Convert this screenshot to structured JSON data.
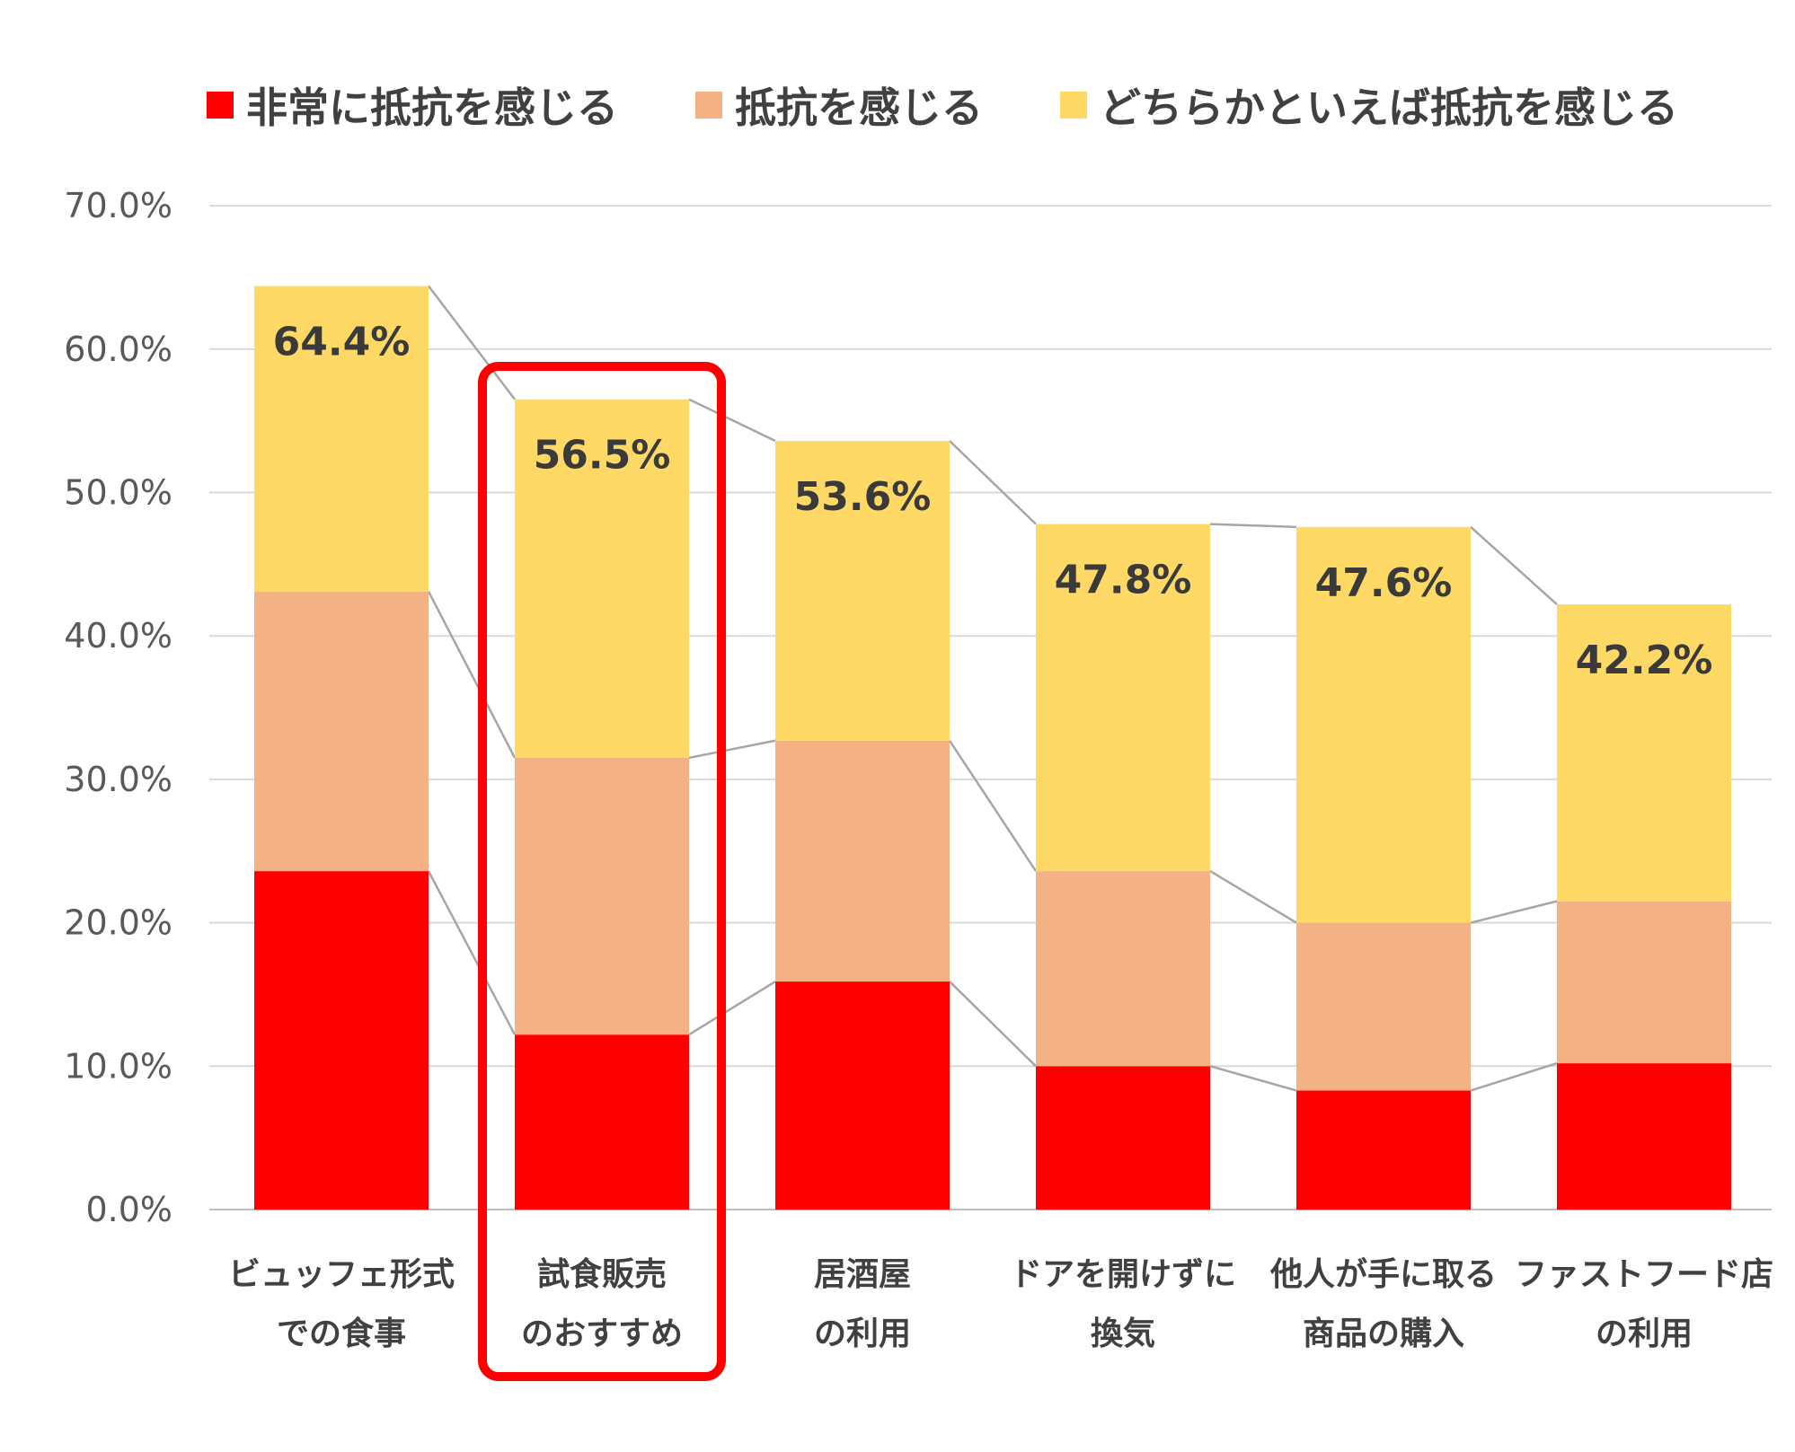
{
  "chart_data": {
    "type": "bar",
    "stacked": true,
    "categories": [
      [
        "ビュッフェ形式",
        "での食事"
      ],
      [
        "試食販売",
        "のおすすめ"
      ],
      [
        "居酒屋",
        "の利用"
      ],
      [
        "ドアを開けずに",
        "換気"
      ],
      [
        "他人が手に取る",
        "商品の購入"
      ],
      [
        "ファストフード店",
        "の利用"
      ]
    ],
    "series": [
      {
        "name": "非常に抵抗を感じる",
        "color": "#FF0000",
        "values": [
          23.6,
          12.2,
          15.9,
          10.0,
          8.3,
          10.2
        ]
      },
      {
        "name": "抵抗を感じる",
        "color": "#F4B183",
        "values": [
          19.5,
          19.3,
          16.8,
          13.6,
          11.7,
          11.3
        ]
      },
      {
        "name": "どちらかといえば抵抗を感じる",
        "color": "#FFD966",
        "values": [
          21.3,
          25.0,
          20.9,
          24.2,
          27.6,
          20.7
        ]
      }
    ],
    "totals": [
      "64.4%",
      "56.5%",
      "53.6%",
      "47.8%",
      "47.6%",
      "42.2%"
    ],
    "total_values": [
      64.4,
      56.5,
      53.6,
      47.8,
      47.6,
      42.2
    ],
    "y_ticks": [
      "0.0%",
      "10.0%",
      "20.0%",
      "30.0%",
      "40.0%",
      "50.0%",
      "60.0%",
      "70.0%"
    ],
    "ylim": [
      0,
      70
    ],
    "grid": true,
    "legend_position": "top",
    "series_lines": true,
    "highlight": {
      "category_index": 1,
      "color": "#FF0000"
    },
    "title": "",
    "xlabel": "",
    "ylabel": ""
  }
}
